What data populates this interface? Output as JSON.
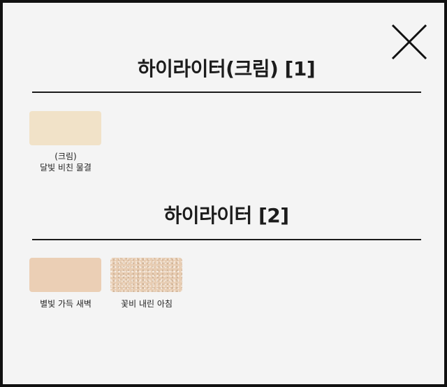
{
  "close": {
    "icon": "close-icon"
  },
  "sections": [
    {
      "title": "하이라이터(크림) [1]",
      "swatches": [
        {
          "label": "(크림)\n달빛 비친 물결",
          "color": "#f1e2c8"
        }
      ]
    },
    {
      "title": "하이라이터 [2]",
      "swatches": [
        {
          "label": "별빛 가득 새벽",
          "color": "#ebcfb5"
        },
        {
          "label": "꽃비 내린 아침",
          "color": "#e8cdb3",
          "texture": "glitter"
        }
      ]
    }
  ]
}
